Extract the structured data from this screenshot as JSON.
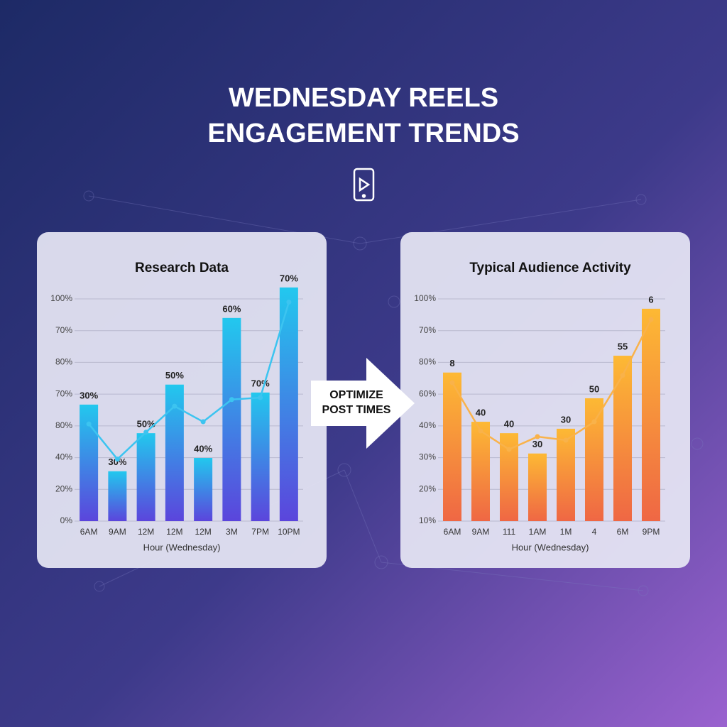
{
  "title": [
    "WEDNESDAY REELS",
    "ENGAGEMENT TRENDS"
  ],
  "arrow_label": [
    "OPTIMIZE",
    "POST TIMES"
  ],
  "chart_data": [
    {
      "type": "bar",
      "title": "Research Data",
      "x_label": "Hour (Wednesday)",
      "categories": [
        "6AM",
        "9AM",
        "12M",
        "12M",
        "12M",
        "3M",
        "7PM",
        "10PM"
      ],
      "series": [
        {
          "type": "bar",
          "color": [
            "#22c8ee",
            "#5b45dc"
          ],
          "values": [
            3.67,
            1.57,
            2.77,
            4.3,
            1.99,
            6.4,
            4.05,
            7.36
          ]
        },
        {
          "type": "line",
          "color": "#3cc4f0",
          "values": [
            3.06,
            1.95,
            2.8,
            3.62,
            3.13,
            3.83,
            3.89,
            6.9
          ]
        }
      ],
      "annotations": [
        "30%",
        "30%",
        "50%",
        "50%",
        "40%",
        "60%",
        "70%",
        "70%"
      ],
      "ylim": [
        0,
        7.5
      ],
      "yticks": [
        {
          "value": 0,
          "label": "0%"
        },
        {
          "value": 1,
          "label": "20%"
        },
        {
          "value": 2,
          "label": "40%"
        },
        {
          "value": 3,
          "label": "80%"
        },
        {
          "value": 4,
          "label": "70%"
        },
        {
          "value": 5,
          "label": "80%"
        },
        {
          "value": 6,
          "label": "70%"
        },
        {
          "value": 7,
          "label": "100%"
        }
      ],
      "grid": true
    },
    {
      "type": "bar",
      "title": "Typical Audience Activity",
      "x_label": "Hour (Wednesday)",
      "categories": [
        "6AM",
        "9AM",
        "111",
        "1AM",
        "1M",
        "4",
        "6M",
        "9PM"
      ],
      "series": [
        {
          "type": "bar",
          "color": [
            "#fdb934",
            "#ef6744"
          ],
          "values": [
            4.68,
            3.13,
            2.77,
            2.13,
            2.91,
            3.87,
            5.21,
            6.69
          ]
        },
        {
          "type": "line",
          "color": "#f9b24a",
          "values": [
            4.36,
            2.84,
            2.26,
            2.66,
            2.55,
            3.13,
            4.59,
            6.35
          ]
        }
      ],
      "annotations": [
        "8",
        "40",
        "40",
        "30",
        "30",
        "50",
        "55",
        "6"
      ],
      "ylim": [
        0,
        7.5
      ],
      "yticks": [
        {
          "value": 0,
          "label": "10%"
        },
        {
          "value": 1,
          "label": "20%"
        },
        {
          "value": 2,
          "label": "30%"
        },
        {
          "value": 3,
          "label": "40%"
        },
        {
          "value": 4,
          "label": "60%"
        },
        {
          "value": 5,
          "label": "80%"
        },
        {
          "value": 6,
          "label": "70%"
        },
        {
          "value": 7,
          "label": "100%"
        }
      ],
      "grid": true
    }
  ]
}
